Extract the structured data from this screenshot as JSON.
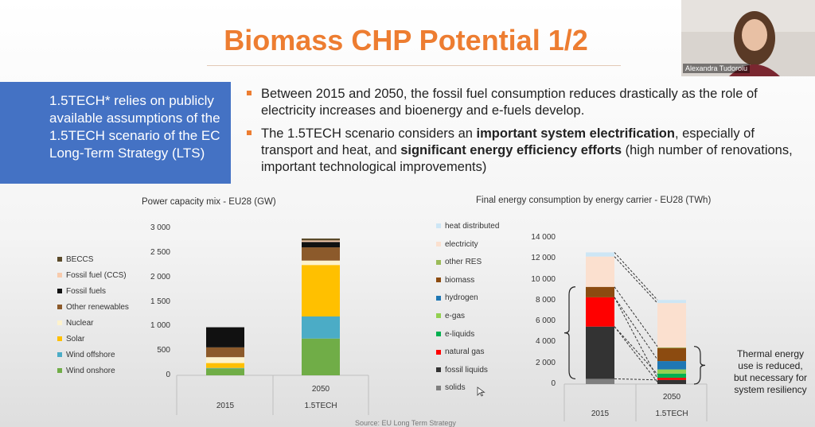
{
  "slide": {
    "title": "Biomass CHP Potential 1/2",
    "box_text": "1.5TECH* relies on publicly available assumptions of the 1.5TECH scenario of the EC Long-Term Strategy (LTS)",
    "bullets": [
      {
        "text": "Between 2015 and 2050, the fossil fuel consumption reduces drastically as the role of electricity increases and bioenergy and e-fuels develop."
      },
      {
        "pre": "The 1.5TECH scenario considers an ",
        "bold1": "important system electrification",
        "mid": ", especially of transport and heat, and ",
        "bold2": "significant energy efficiency efforts",
        "post": " (high number of renovations, important technological improvements)"
      }
    ],
    "note": "Thermal energy use is reduced, but necessary for system resiliency",
    "source": "Source: EU Long Term Strategy"
  },
  "video": {
    "participant_name": "Alexandra Tudoroiu"
  },
  "colors": {
    "title": "#ed7d31",
    "box": "#4472c4"
  },
  "chart_data": [
    {
      "type": "bar",
      "stacked": true,
      "title": "Power capacity mix - EU28 (GW)",
      "categories": [
        "2015",
        "2050"
      ],
      "category_sublabels": [
        "",
        "1.5TECH"
      ],
      "yticks": [
        "0",
        "500",
        "1 000",
        "1 500",
        "2 000",
        "2 500",
        "3 000"
      ],
      "ylim": [
        0,
        3000
      ],
      "series": [
        {
          "name": "Wind onshore",
          "color": "#70ad47",
          "values": [
            140,
            750
          ]
        },
        {
          "name": "Wind offshore",
          "color": "#4bacc6",
          "values": [
            10,
            450
          ]
        },
        {
          "name": "Solar",
          "color": "#ffc000",
          "values": [
            100,
            1050
          ]
        },
        {
          "name": "Nuclear",
          "color": "#fdf2cc",
          "values": [
            120,
            90
          ]
        },
        {
          "name": "Other renewables",
          "color": "#8c5a2b",
          "values": [
            200,
            270
          ]
        },
        {
          "name": "Fossil fuels",
          "color": "#111111",
          "values": [
            410,
            110
          ]
        },
        {
          "name": "Fossil fuel (CCS)",
          "color": "#f8cbad",
          "values": [
            0,
            30
          ]
        },
        {
          "name": "BECCS",
          "color": "#5a4a2a",
          "values": [
            0,
            40
          ]
        }
      ],
      "legend": "left"
    },
    {
      "type": "bar",
      "stacked": true,
      "title": "Final energy consumption by energy carrier - EU28 (TWh)",
      "categories": [
        "2015",
        "2050"
      ],
      "category_sublabels": [
        "",
        "1.5TECH"
      ],
      "yticks": [
        "0",
        "2 000",
        "4 000",
        "6 000",
        "8 000",
        "10 000",
        "12 000",
        "14 000"
      ],
      "ylim": [
        0,
        14000
      ],
      "series": [
        {
          "name": "solids",
          "color": "#7f7f7f",
          "values": [
            500,
            0
          ]
        },
        {
          "name": "fossil liquids",
          "color": "#333333",
          "values": [
            5000,
            400
          ]
        },
        {
          "name": "natural gas",
          "color": "#ff0000",
          "values": [
            2800,
            200
          ]
        },
        {
          "name": "e-liquids",
          "color": "#00b050",
          "values": [
            0,
            400
          ]
        },
        {
          "name": "e-gas",
          "color": "#92d050",
          "values": [
            0,
            400
          ]
        },
        {
          "name": "hydrogen",
          "color": "#1f77b4",
          "values": [
            0,
            800
          ]
        },
        {
          "name": "biomass",
          "color": "#8c4b10",
          "values": [
            1000,
            1250
          ]
        },
        {
          "name": "other RES",
          "color": "#9bbb59",
          "values": [
            0,
            50
          ]
        },
        {
          "name": "electricity",
          "color": "#fbe0cf",
          "values": [
            2900,
            4250
          ]
        },
        {
          "name": "heat distributed",
          "color": "#cde6f5",
          "values": [
            400,
            300
          ]
        }
      ],
      "legend": "left"
    }
  ]
}
